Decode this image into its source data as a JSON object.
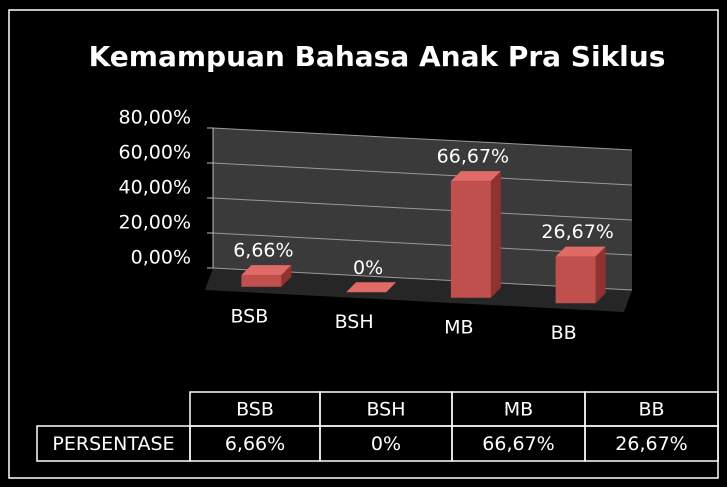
{
  "chart_data": {
    "type": "bar",
    "title": "Kemampuan Bahasa Anak Pra Siklus",
    "categories": [
      "BSB",
      "BSH",
      "MB",
      "BB"
    ],
    "series": [
      {
        "name": "PERSENTASE",
        "color": "#c0504d",
        "values": [
          6.66,
          0,
          66.67,
          26.67
        ],
        "value_labels": [
          "6,66%",
          "0%",
          "66,67%",
          "26,67%"
        ]
      }
    ],
    "ylim": [
      0,
      80
    ],
    "yticks": [
      {
        "value": 0,
        "label": "0,00%"
      },
      {
        "value": 20,
        "label": "20,00%"
      },
      {
        "value": 40,
        "label": "40,00%"
      },
      {
        "value": 60,
        "label": "60,00%"
      },
      {
        "value": 80,
        "label": "80,00%"
      }
    ],
    "grid": true
  }
}
